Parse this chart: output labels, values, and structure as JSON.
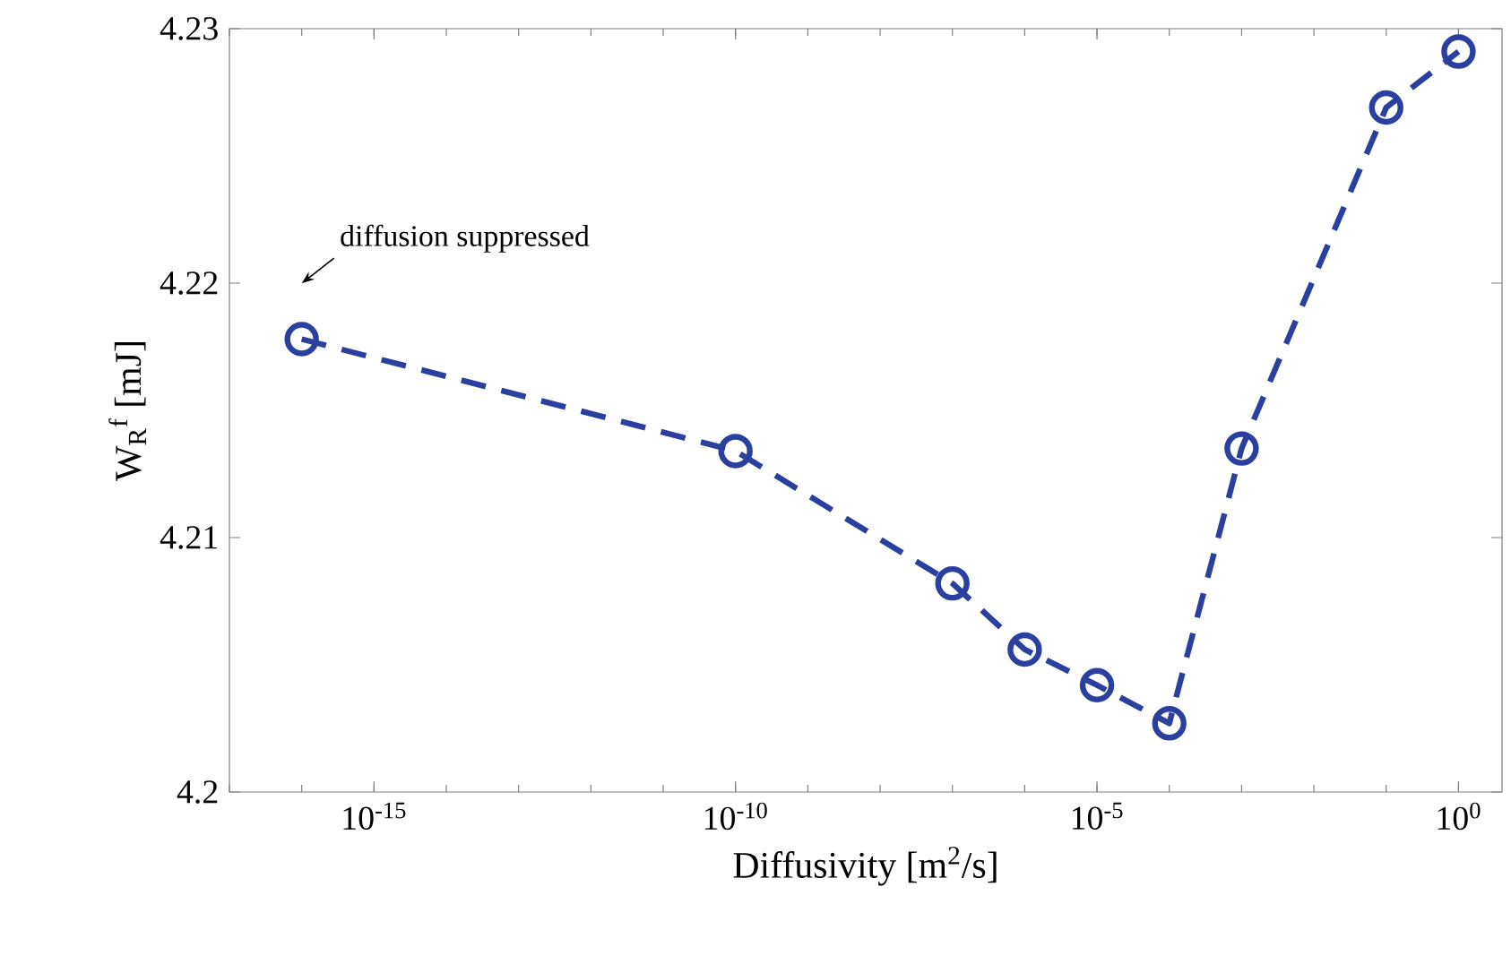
{
  "chart_data": {
    "type": "line",
    "xlabel": "Diffusivity [m$^{2}$/s]",
    "ylabel": "W$_{R}$$^{f}$ [mJ]",
    "log": "x",
    "x": [
      1e-16,
      1e-10,
      1e-07,
      1e-06,
      1e-05,
      0.0001,
      0.001,
      0.1,
      1
    ],
    "series": [
      {
        "color": "#2b3f9e",
        "values": [
          4.2178,
          4.2134,
          4.2082,
          4.2056,
          4.2042,
          4.2027,
          4.2135,
          4.2269,
          4.2291
        ]
      }
    ],
    "marker": "circle",
    "line_style": "dashed",
    "xlim": [
      1e-17,
      4
    ],
    "ylim": [
      4.2,
      4.23
    ],
    "xticks": [
      {
        "value": 1e-15,
        "label": "10$^{-15}$"
      },
      {
        "value": 1e-10,
        "label": "10$^{-10}$"
      },
      {
        "value": 1e-05,
        "label": "10$^{-5}$"
      },
      {
        "value": 1,
        "label": "10$^{0}$"
      }
    ],
    "yticks": [
      4.2,
      4.21,
      4.22,
      4.23
    ],
    "annotations": [
      "diffusion suppressed"
    ]
  }
}
